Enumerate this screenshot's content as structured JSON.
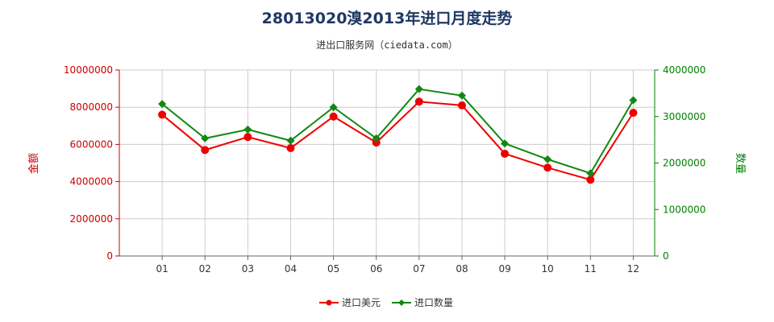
{
  "chart_data": {
    "type": "line",
    "title": "28013020溴2013年进口月度走势",
    "subtitle": "进出口服务网（ciedata.com）",
    "categories": [
      "01",
      "02",
      "03",
      "04",
      "05",
      "06",
      "07",
      "08",
      "09",
      "10",
      "11",
      "12"
    ],
    "y_left": {
      "label": "金额",
      "ylim": [
        0,
        10000000
      ],
      "ticks": [
        "0",
        "2000000",
        "4000000",
        "6000000",
        "8000000",
        "10000000"
      ],
      "color": "#cc0000"
    },
    "y_right": {
      "label": "数量",
      "ylim": [
        0,
        4000000
      ],
      "ticks": [
        "0",
        "1000000",
        "2000000",
        "3000000",
        "4000000"
      ],
      "color": "#008000"
    },
    "series": [
      {
        "name": "进口美元",
        "axis": "left",
        "color": "#ee0000",
        "marker": "circle",
        "values": [
          7600000,
          5700000,
          6400000,
          5800000,
          7500000,
          6100000,
          8300000,
          8100000,
          5500000,
          4750000,
          4100000,
          7700000
        ]
      },
      {
        "name": "进口数量",
        "axis": "right",
        "color": "#118811",
        "marker": "diamond",
        "values": [
          3270000,
          2530000,
          2720000,
          2480000,
          3200000,
          2530000,
          3590000,
          3450000,
          2420000,
          2080000,
          1780000,
          3350000
        ]
      }
    ],
    "grid": true,
    "legend_position": "bottom-center"
  }
}
